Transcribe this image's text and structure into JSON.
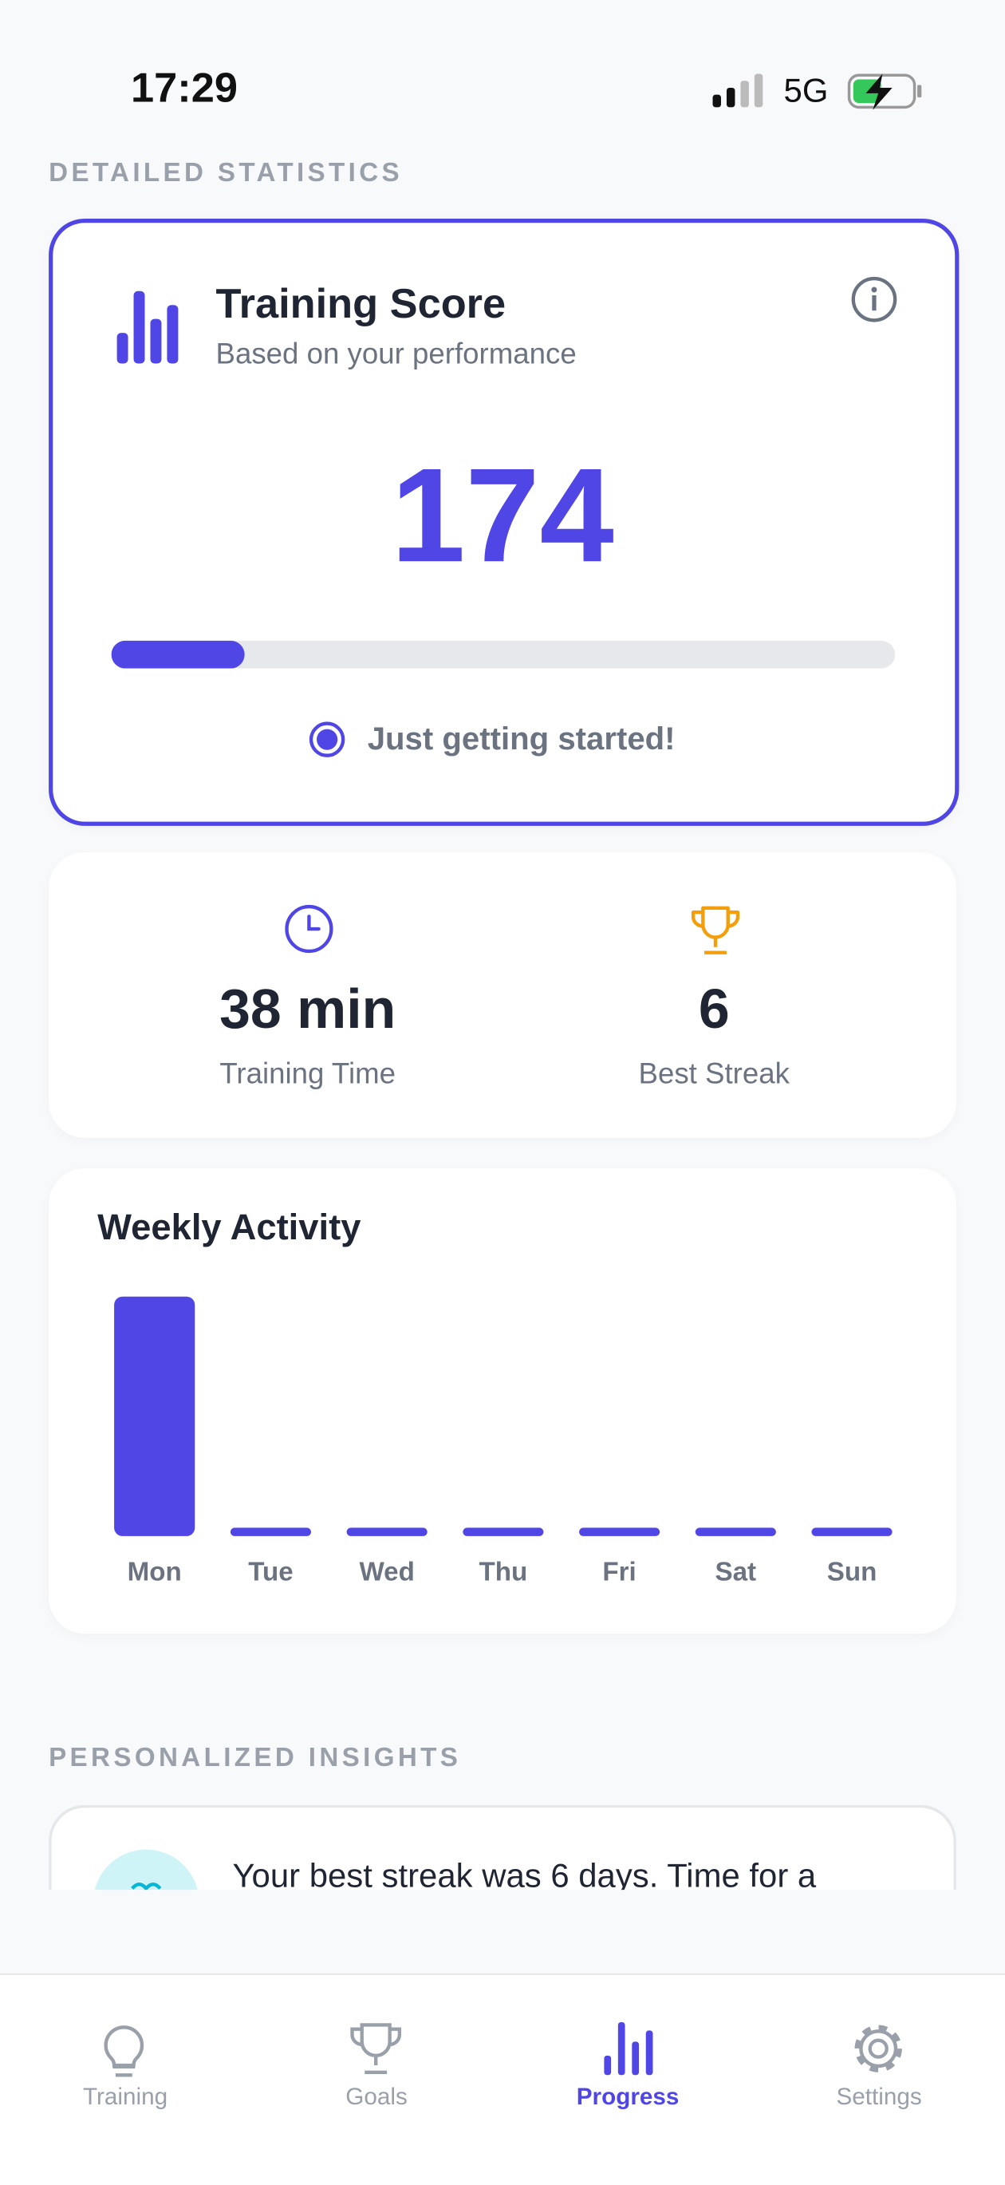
{
  "status_bar": {
    "time": "17:29",
    "network": "5G"
  },
  "sections": {
    "statistics": "DETAILED STATISTICS",
    "insights": "PERSONALIZED INSIGHTS"
  },
  "score_card": {
    "title": "Training Score",
    "subtitle": "Based on your performance",
    "score": 174,
    "progress_percent": 17,
    "status": "Just getting started!"
  },
  "stats": [
    {
      "value": "38 min",
      "label": "Training Time"
    },
    {
      "value": "6",
      "label": "Best Streak"
    }
  ],
  "chart_data": {
    "type": "bar",
    "title": "Weekly Activity",
    "categories": [
      "Mon",
      "Tue",
      "Wed",
      "Thu",
      "Fri",
      "Sat",
      "Sun"
    ],
    "values": [
      38,
      0,
      0,
      0,
      0,
      0,
      0
    ],
    "color": "#5046e5"
  },
  "insights": [
    {
      "text": "Your best streak was 6 days. Time for a"
    }
  ],
  "tabs": [
    {
      "label": "Training"
    },
    {
      "label": "Goals"
    },
    {
      "label": "Progress",
      "active": true
    },
    {
      "label": "Settings"
    }
  ]
}
